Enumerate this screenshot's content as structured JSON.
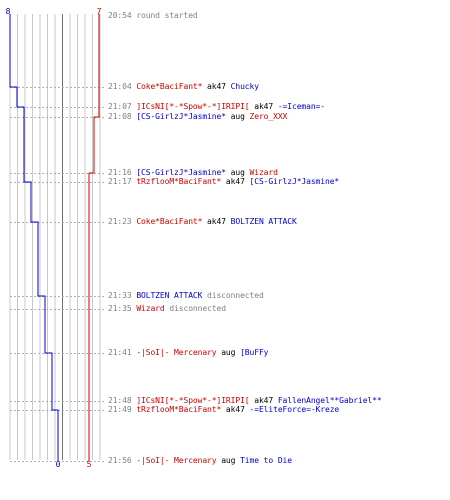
{
  "scoreboard": {
    "left_start": "8",
    "right_start": "7",
    "left_end": "0",
    "right_end": "5",
    "left_color": "#0000cc",
    "right_color": "#cc0000"
  },
  "events": [
    {
      "time": "20:54",
      "parts": [
        {
          "text": "round started",
          "c": "g"
        }
      ]
    },
    {
      "time": "21:04",
      "parts": [
        {
          "text": "Coke*BaciFant*",
          "c": "r"
        },
        {
          "text": " ak47 ",
          "c": "k"
        },
        {
          "text": "Chucky",
          "c": "b"
        }
      ]
    },
    {
      "time": "21:07",
      "parts": [
        {
          "text": "]ICsNI[*-*Spow*-*]IRIPI[",
          "c": "r"
        },
        {
          "text": " ak47 ",
          "c": "k"
        },
        {
          "text": "-=Iceman=-",
          "c": "b"
        }
      ]
    },
    {
      "time": "21:08",
      "parts": [
        {
          "text": "[CS-GirlzJ*Jasmine*",
          "c": "b"
        },
        {
          "text": "              aug ",
          "c": "k"
        },
        {
          "text": "Zero_XXX",
          "c": "r"
        }
      ]
    },
    {
      "time": "21:16",
      "parts": [
        {
          "text": "[CS-GirlzJ*Jasmine*",
          "c": "b"
        },
        {
          "text": "              aug ",
          "c": "k"
        },
        {
          "text": "Wizard",
          "c": "r"
        }
      ]
    },
    {
      "time": "21:17",
      "parts": [
        {
          "text": "tRzflooM*BaciFant*",
          "c": "r"
        },
        {
          "text": " ak47 ",
          "c": "k"
        },
        {
          "text": "[CS-GirlzJ*Jasmine*",
          "c": "b"
        }
      ]
    },
    {
      "time": "21:23",
      "parts": [
        {
          "text": "Coke*BaciFant*",
          "c": "r"
        },
        {
          "text": " ak47 ",
          "c": "k"
        },
        {
          "text": "BOLTZEN ATTACK",
          "c": "b"
        }
      ]
    },
    {
      "time": "21:33",
      "parts": [
        {
          "text": "BOLTZEN ATTACK",
          "c": "b"
        },
        {
          "text": " disconnected",
          "c": "g"
        }
      ]
    },
    {
      "time": "21:35",
      "parts": [
        {
          "text": "Wizard",
          "c": "r"
        },
        {
          "text": " disconnected",
          "c": "g"
        }
      ]
    },
    {
      "time": "21:41",
      "parts": [
        {
          "text": "-|SoI|- Mercenary",
          "c": "r"
        },
        {
          "text": " aug ",
          "c": "k"
        },
        {
          "text": "[BuFFy",
          "c": "b"
        }
      ]
    },
    {
      "time": "21:48",
      "parts": [
        {
          "text": "]ICsNI[*-*Spow*-*]IRIPI[",
          "c": "r"
        },
        {
          "text": " ak47 ",
          "c": "k"
        },
        {
          "text": "FallenAngel**Gabriel**",
          "c": "b"
        }
      ]
    },
    {
      "time": "21:49",
      "parts": [
        {
          "text": "tRzflooM*BaciFant*",
          "c": "r"
        },
        {
          "text": " ak47 ",
          "c": "k"
        },
        {
          "text": "-=EliteForce=-Kreze",
          "c": "b"
        }
      ]
    },
    {
      "time": "21:56",
      "parts": [
        {
          "text": "-|SoI|- Mercenary",
          "c": "r"
        },
        {
          "text": " aug ",
          "c": "k"
        },
        {
          "text": "Time to Die",
          "c": "b"
        }
      ]
    }
  ]
}
